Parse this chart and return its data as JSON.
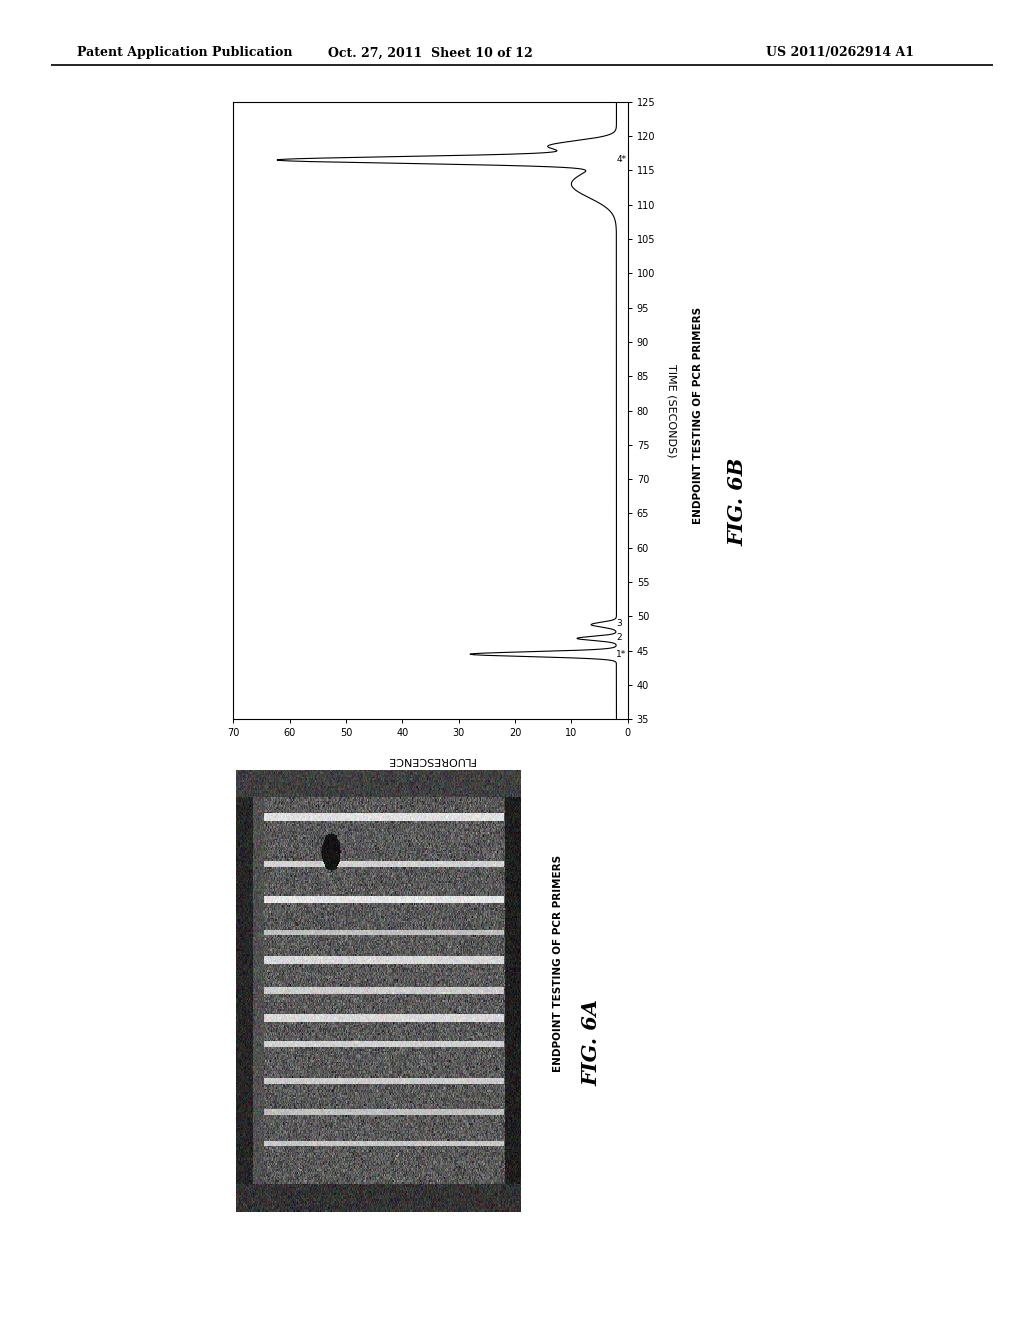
{
  "background_color": "#ffffff",
  "header_left": "Patent Application Publication",
  "header_center": "Oct. 27, 2011  Sheet 10 of 12",
  "header_right": "US 2011/0262914 A1",
  "fig6b_title": "ENDPOINT TESTING OF PCR PRIMERS",
  "fig6b_label": "FIG. 6B",
  "fig6b_xlabel_rotated": "TIME (SECONDS)",
  "fig6b_ylabel_rotated": "FLUORESCENCE",
  "fig6b_xlim": [
    35,
    125
  ],
  "fig6b_ylim": [
    0,
    70
  ],
  "fig6b_xticks": [
    35,
    40,
    45,
    50,
    55,
    60,
    65,
    70,
    75,
    80,
    85,
    90,
    95,
    100,
    105,
    110,
    115,
    120,
    125
  ],
  "fig6b_yticks": [
    0,
    10,
    20,
    30,
    40,
    50,
    60,
    70
  ],
  "fig6a_title": "ENDPOINT TESTING OF PCR PRIMERS",
  "fig6a_label": "FIG. 6A"
}
